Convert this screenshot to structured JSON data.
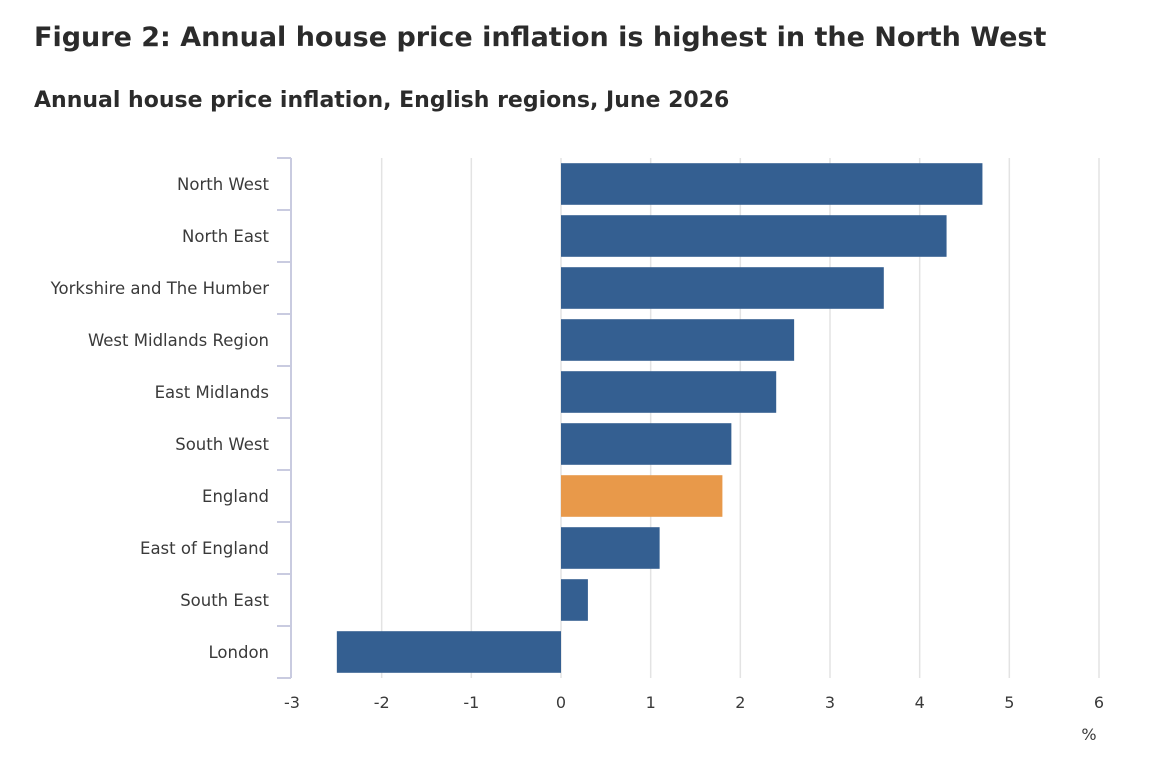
{
  "figure_title": "Figure 2: Annual house price inflation is highest in the North West",
  "chart_data": {
    "type": "bar",
    "orientation": "horizontal",
    "title": "Annual house price inflation, English regions, June 2026",
    "xlabel": "%",
    "ylabel": "",
    "categories": [
      "North West",
      "North East",
      "Yorkshire and The Humber",
      "West Midlands Region",
      "East Midlands",
      "South West",
      "England",
      "East of England",
      "South East",
      "London"
    ],
    "values": [
      4.7,
      4.3,
      3.6,
      2.6,
      2.4,
      1.9,
      1.8,
      1.1,
      0.3,
      -2.5
    ],
    "highlight_category": "England",
    "colors": {
      "default": "#345f91",
      "highlight": "#e8994a",
      "grid": "#e3e3e3",
      "axis": "#c9cbe0"
    },
    "xlim": [
      -3,
      6
    ],
    "xticks": [
      "-3",
      "-2",
      "-1",
      "0",
      "1",
      "2",
      "3",
      "4",
      "5",
      "6"
    ],
    "grid": true,
    "legend": "none"
  }
}
